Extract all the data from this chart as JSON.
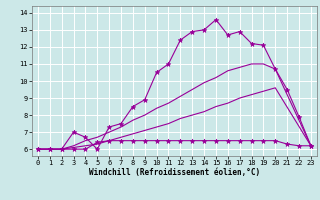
{
  "xlabel": "Windchill (Refroidissement éolien,°C)",
  "bg_color": "#cce8e8",
  "line_color": "#990099",
  "grid_color": "#ffffff",
  "xlim": [
    -0.5,
    23.5
  ],
  "ylim": [
    5.6,
    14.4
  ],
  "yticks": [
    6,
    7,
    8,
    9,
    10,
    11,
    12,
    13,
    14
  ],
  "xticks": [
    0,
    1,
    2,
    3,
    4,
    5,
    6,
    7,
    8,
    9,
    10,
    11,
    12,
    13,
    14,
    15,
    16,
    17,
    18,
    19,
    20,
    21,
    22,
    23
  ],
  "series": [
    {
      "x": [
        0,
        1,
        2,
        3,
        4,
        5,
        6,
        7,
        8,
        9,
        10,
        11,
        12,
        13,
        14,
        15,
        16,
        17,
        18,
        19,
        20,
        21,
        22,
        23
      ],
      "y": [
        6.0,
        6.0,
        6.0,
        7.0,
        6.7,
        6.0,
        7.3,
        7.5,
        8.5,
        8.9,
        10.5,
        11.0,
        12.4,
        12.9,
        13.0,
        13.6,
        12.7,
        12.9,
        12.2,
        12.1,
        10.7,
        9.5,
        7.9,
        6.2
      ],
      "marker": true
    },
    {
      "x": [
        0,
        1,
        2,
        3,
        4,
        5,
        6,
        7,
        8,
        9,
        10,
        11,
        12,
        13,
        14,
        15,
        16,
        17,
        18,
        19,
        20,
        23
      ],
      "y": [
        6.0,
        6.0,
        6.0,
        6.2,
        6.5,
        6.7,
        7.0,
        7.3,
        7.7,
        8.0,
        8.4,
        8.7,
        9.1,
        9.5,
        9.9,
        10.2,
        10.6,
        10.8,
        11.0,
        11.0,
        10.7,
        6.2
      ],
      "marker": false
    },
    {
      "x": [
        0,
        1,
        2,
        3,
        4,
        5,
        6,
        7,
        8,
        9,
        10,
        11,
        12,
        13,
        14,
        15,
        16,
        17,
        18,
        19,
        20,
        23
      ],
      "y": [
        6.0,
        6.0,
        6.0,
        6.1,
        6.2,
        6.3,
        6.5,
        6.7,
        6.9,
        7.1,
        7.3,
        7.5,
        7.8,
        8.0,
        8.2,
        8.5,
        8.7,
        9.0,
        9.2,
        9.4,
        9.6,
        6.2
      ],
      "marker": false
    },
    {
      "x": [
        0,
        1,
        2,
        3,
        4,
        5,
        6,
        7,
        8,
        9,
        10,
        11,
        12,
        13,
        14,
        15,
        16,
        17,
        18,
        19,
        20,
        21,
        22,
        23
      ],
      "y": [
        6.0,
        6.0,
        6.0,
        6.0,
        6.0,
        6.4,
        6.5,
        6.5,
        6.5,
        6.5,
        6.5,
        6.5,
        6.5,
        6.5,
        6.5,
        6.5,
        6.5,
        6.5,
        6.5,
        6.5,
        6.5,
        6.3,
        6.2,
        6.2
      ],
      "marker": true
    }
  ]
}
